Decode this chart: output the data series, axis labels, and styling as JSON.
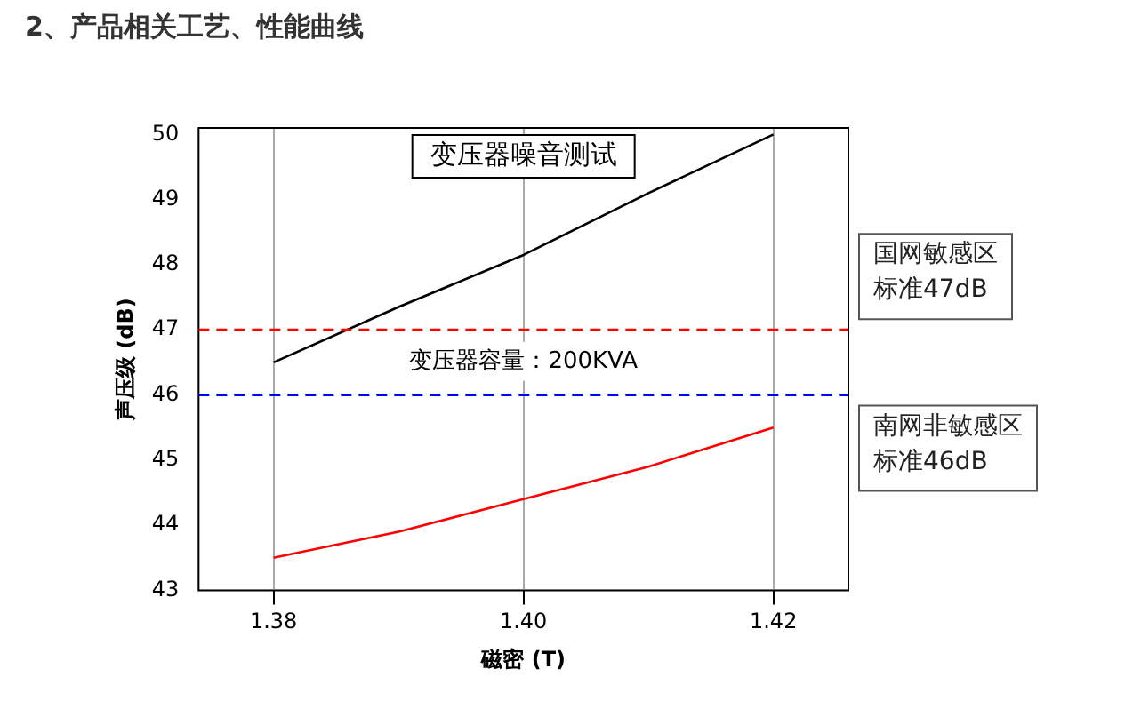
{
  "chart_data": {
    "type": "line",
    "title": "变压器噪音测试",
    "xlabel": "磁密 (T)",
    "ylabel": "声压级 (dB)",
    "x": [
      1.38,
      1.39,
      1.4,
      1.41,
      1.42
    ],
    "series": [
      {
        "color": "#000000",
        "values": [
          46.5,
          47.35,
          48.15,
          49.1,
          50.0
        ]
      },
      {
        "color": "#ff0000",
        "values": [
          43.5,
          43.9,
          44.4,
          44.9,
          45.5
        ]
      }
    ],
    "xlim": [
      1.374,
      1.426
    ],
    "xticks": [
      1.38,
      {
        "value": 1.4,
        "label": "1.40"
      },
      1.42
    ],
    "ylim": [
      43,
      50.1
    ],
    "yticks": [
      43,
      44,
      45,
      46,
      47,
      48,
      49,
      50
    ],
    "grid": "x",
    "marker": "none",
    "line_style": "solid",
    "ref_lines": [
      {
        "axis": "y",
        "value": 47,
        "label": "国网敏感区标准47dB",
        "color": "#ff0000",
        "line_style": "dashed"
      },
      {
        "axis": "y",
        "value": 46,
        "label": "南网非敏感区标准46dB",
        "color": "#0000ff",
        "line_style": "dashed"
      }
    ],
    "annotations": [
      "2、产品相关工艺、性能曲线",
      "变压器容量：200KVA"
    ]
  }
}
